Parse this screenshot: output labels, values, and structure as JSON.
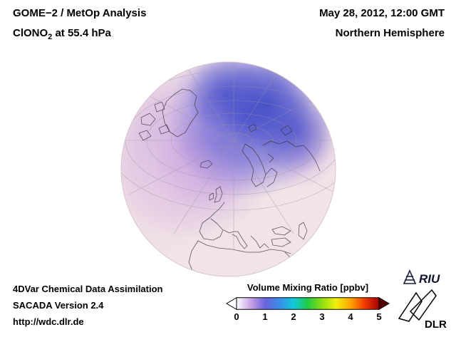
{
  "header": {
    "analysis_title": "GOME−2 / MetOp Analysis",
    "species_prefix": "ClONO",
    "species_subscript": "2",
    "species_suffix": " at 55.4 hPa",
    "datetime": "May 28, 2012, 12:00 GMT",
    "hemisphere": "Northern Hemisphere"
  },
  "footer": {
    "line1": "4DVar Chemical Data Assimilation",
    "line2": "SACADA Version 2.4",
    "line3": "http://wdc.dlr.de"
  },
  "colorbar": {
    "title": "Volume Mixing Ratio [ppbv]",
    "tick_labels": [
      "0",
      "1",
      "2",
      "3",
      "4",
      "5"
    ],
    "gradient_stops": [
      "#ffffff",
      "#c8a2e6",
      "#6a62dd",
      "#3b8de8",
      "#12c8dc",
      "#22cc44",
      "#8ede12",
      "#f2ee0c",
      "#ffa400",
      "#f03800",
      "#a40000"
    ],
    "underflow_color": "#ffffff",
    "overflow_color": "#550000"
  },
  "logos": {
    "riu_label": "RIU",
    "dlr_label": "DLR"
  },
  "chart_data": {
    "type": "heatmap",
    "title": "GOME−2 / MetOp Analysis — ClONO2 at 55.4 hPa",
    "datetime": "May 28, 2012, 12:00 GMT",
    "projection": "orthographic globe, Northern Hemisphere",
    "variable": "ClONO2 volume mixing ratio",
    "units": "ppbv",
    "scale_range": [
      0,
      5
    ],
    "colormap": "white-violet-blue-cyan-green-yellow-orange-red with under/over arrows",
    "field_summary": [
      {
        "region": "Arctic polar cap extending over northern Russia",
        "approx_value_ppbv": 1.2
      },
      {
        "region": "North Atlantic / Greenland sector",
        "approx_value_ppbv": 0.5
      },
      {
        "region": "mid-latitude Europe",
        "approx_value_ppbv": 0.3
      },
      {
        "region": "subtropics / North Africa",
        "approx_value_ppbv": 0.15
      }
    ]
  }
}
